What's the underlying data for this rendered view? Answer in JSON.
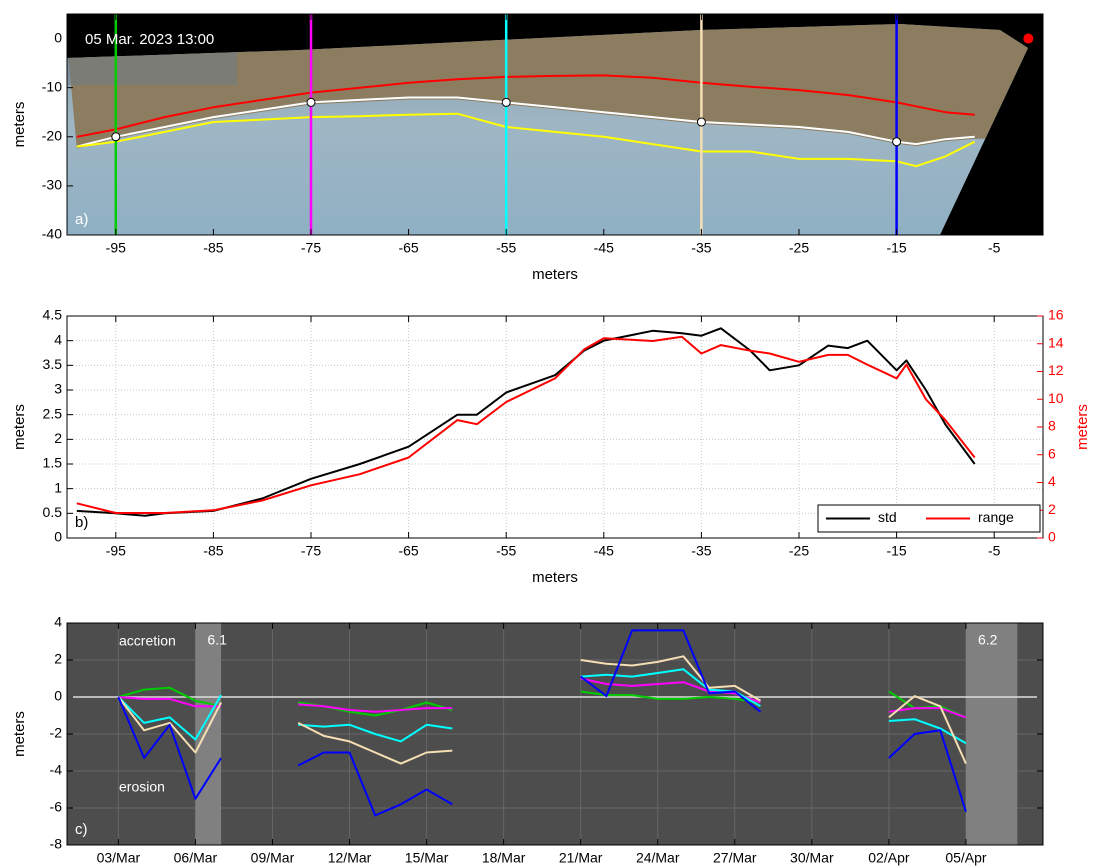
{
  "chart_data": [
    {
      "type": "line",
      "timestamp": "05 Mar. 2023 13:00",
      "panel_label": "a)",
      "xlabel": "meters",
      "ylabel": "meters",
      "xlim": [
        -100,
        0
      ],
      "ylim": [
        -40,
        5
      ],
      "xticks": [
        -95,
        -85,
        -75,
        -65,
        -55,
        -45,
        -35,
        -25,
        -15,
        -5
      ],
      "yticks": [
        -40,
        -30,
        -20,
        -10,
        0
      ],
      "x": [
        -99,
        -95,
        -90,
        -85,
        -80,
        -75,
        -70,
        -65,
        -60,
        -55,
        -50,
        -45,
        -40,
        -35,
        -30,
        -25,
        -20,
        -15,
        -13,
        -10,
        -7
      ],
      "series": [
        {
          "color": "#ff0000",
          "values": [
            -20,
            -18.5,
            -16,
            -14,
            -12.5,
            -11,
            -10,
            -9,
            -8.3,
            -7.8,
            -7.6,
            -7.5,
            -8,
            -9,
            -9.8,
            -10.5,
            -11.5,
            -13,
            -13.8,
            -15,
            -15.5
          ]
        },
        {
          "color": "#ffffff",
          "values": [
            -22,
            -20,
            -18,
            -16,
            -14.5,
            -13,
            -12.5,
            -12,
            -12,
            -13,
            -14,
            -15,
            -16,
            -17,
            -17.5,
            -18,
            -19,
            -21,
            -21.5,
            -20.5,
            -20
          ]
        },
        {
          "color": "#ffff00",
          "values": [
            -22,
            -21,
            -19,
            -17,
            -16.5,
            -16,
            -15.8,
            -15.5,
            -15.3,
            -18,
            -19,
            -20,
            -21.5,
            -23,
            -23,
            -24.5,
            -24.5,
            -25,
            -26,
            -24,
            -21
          ]
        }
      ],
      "transects": [
        {
          "x": -95,
          "y": -20,
          "color": "#00cc00"
        },
        {
          "x": -75,
          "y": -13,
          "color": "#ff00ff"
        },
        {
          "x": -55,
          "y": -13,
          "color": "#00ffff"
        },
        {
          "x": -35,
          "y": -17,
          "color": "#f5deb3"
        },
        {
          "x": -15,
          "y": -21,
          "color": "#0000ff"
        }
      ],
      "marker": {
        "x": -1.5,
        "y": 0,
        "color": "#ff0000"
      }
    },
    {
      "type": "line",
      "panel_label": "b)",
      "xlabel": "meters",
      "ylabel": "meters",
      "y2label": "meters",
      "xlim": [
        -100,
        0
      ],
      "ylim": [
        0,
        4.5
      ],
      "y2lim": [
        0,
        16
      ],
      "xticks": [
        -95,
        -85,
        -75,
        -65,
        -55,
        -45,
        -35,
        -25,
        -15,
        -5
      ],
      "yticks": [
        0,
        0.5,
        1,
        1.5,
        2,
        2.5,
        3,
        3.5,
        4,
        4.5
      ],
      "y2ticks": [
        0,
        2,
        4,
        6,
        8,
        10,
        12,
        14,
        16
      ],
      "grid": true,
      "legend": "lower right",
      "x": [
        -99,
        -95,
        -92,
        -90,
        -85,
        -80,
        -75,
        -70,
        -65,
        -60,
        -58,
        -55,
        -50,
        -47,
        -45,
        -40,
        -37,
        -35,
        -33,
        -30,
        -28,
        -25,
        -22,
        -20,
        -18,
        -15,
        -14,
        -12,
        -10,
        -7
      ],
      "series": [
        {
          "name": "std",
          "color": "#000000",
          "values": [
            0.55,
            0.5,
            0.45,
            0.5,
            0.55,
            0.8,
            1.2,
            1.5,
            1.85,
            2.5,
            2.5,
            2.95,
            3.3,
            3.8,
            4.0,
            4.2,
            4.15,
            4.1,
            4.25,
            3.8,
            3.4,
            3.5,
            3.9,
            3.85,
            4.0,
            3.4,
            3.6,
            3.0,
            2.3,
            1.5
          ]
        },
        {
          "name": "range",
          "color": "#ff0000",
          "axis": "y2",
          "values": [
            2.5,
            1.8,
            1.8,
            1.8,
            2.0,
            2.7,
            3.8,
            4.6,
            5.8,
            8.5,
            8.2,
            9.8,
            11.5,
            13.6,
            14.4,
            14.2,
            14.5,
            13.3,
            13.9,
            13.5,
            13.3,
            12.7,
            13.2,
            13.2,
            12.5,
            11.5,
            12.5,
            10,
            8.5,
            5.8
          ]
        }
      ]
    },
    {
      "type": "line",
      "panel_label": "c)",
      "upper_note": "accretion",
      "lower_note": "erosion",
      "ylabel": "meters",
      "plot_background": "#4d4d4d",
      "grid": true,
      "xlim": [
        "01/Mar",
        "08/Apr"
      ],
      "ylim": [
        -8,
        4
      ],
      "xticks": [
        "03/Mar",
        "06/Mar",
        "09/Mar",
        "12/Mar",
        "15/Mar",
        "18/Mar",
        "21/Mar",
        "24/Mar",
        "27/Mar",
        "30/Mar",
        "02/Apr",
        "05/Apr"
      ],
      "yticks": [
        -8,
        -6,
        -4,
        -2,
        0,
        2,
        4
      ],
      "events": [
        {
          "label": "6.1",
          "start": "06/Mar",
          "end": "07/Mar"
        },
        {
          "label": "6.2",
          "start": "05/Apr",
          "end": "07/Apr"
        }
      ],
      "x": [
        "03/Mar",
        "04/Mar",
        "05/Mar",
        "06/Mar",
        "07/Mar",
        "08/Mar",
        "09/Mar",
        "10/Mar",
        "11/Mar",
        "12/Mar",
        "13/Mar",
        "14/Mar",
        "15/Mar",
        "16/Mar",
        "17/Mar",
        "18/Mar",
        "19/Mar",
        "20/Mar",
        "21/Mar",
        "22/Mar",
        "23/Mar",
        "24/Mar",
        "25/Mar",
        "26/Mar",
        "27/Mar",
        "28/Mar",
        "29/Mar",
        "30/Mar",
        "31/Mar",
        "01/Apr",
        "02/Apr",
        "03/Apr",
        "04/Apr",
        "05/Apr"
      ],
      "series": [
        {
          "color": "#00cc00",
          "values": [
            0,
            0.4,
            0.5,
            -0.2,
            -0.5,
            null,
            null,
            -0.3,
            -0.5,
            -0.8,
            -1.0,
            -0.7,
            -0.3,
            -0.7,
            null,
            null,
            null,
            null,
            0.3,
            0.1,
            0.1,
            -0.1,
            -0.1,
            0.0,
            -0.1,
            -0.3,
            null,
            null,
            null,
            null,
            0.3,
            -0.6,
            -0.5,
            -1.1
          ]
        },
        {
          "color": "#ff00ff",
          "values": [
            0,
            -0.1,
            -0.1,
            -0.5,
            -0.5,
            null,
            null,
            -0.4,
            -0.5,
            -0.7,
            -0.8,
            -0.7,
            -0.6,
            -0.6,
            null,
            null,
            null,
            null,
            1.0,
            0.7,
            0.6,
            0.7,
            0.8,
            0.3,
            0.2,
            -0.3,
            null,
            null,
            null,
            null,
            -0.8,
            -0.6,
            -0.6,
            -1.1
          ]
        },
        {
          "color": "#00ffff",
          "values": [
            0,
            -1.4,
            -1.1,
            -2.3,
            0.1,
            null,
            null,
            -1.5,
            -1.6,
            -1.5,
            -2.0,
            -2.4,
            -1.5,
            -1.7,
            null,
            null,
            null,
            null,
            1.1,
            1.2,
            1.1,
            1.3,
            1.5,
            0.4,
            0.3,
            -0.5,
            null,
            null,
            null,
            null,
            -1.3,
            -1.2,
            -1.7,
            -2.5
          ]
        },
        {
          "color": "#f5deb3",
          "values": [
            0,
            -1.8,
            -1.4,
            -3.0,
            -0.3,
            null,
            null,
            -1.4,
            -2.1,
            -2.4,
            -3.0,
            -3.6,
            -3.0,
            -2.9,
            null,
            null,
            null,
            null,
            2.0,
            1.8,
            1.7,
            1.9,
            2.2,
            0.5,
            0.6,
            -0.2,
            null,
            null,
            null,
            null,
            -1.1,
            0.05,
            -0.5,
            -3.6
          ]
        },
        {
          "color": "#0000ff",
          "values": [
            0,
            -3.3,
            -1.5,
            -5.5,
            -3.3,
            null,
            null,
            -3.7,
            -3.0,
            -3.0,
            -6.4,
            -5.8,
            -5.0,
            -5.8,
            null,
            null,
            null,
            null,
            1.1,
            0.05,
            3.6,
            3.6,
            3.6,
            0.2,
            0.3,
            -0.8,
            null,
            null,
            null,
            null,
            -3.3,
            -2.0,
            -1.8,
            -6.2
          ]
        }
      ]
    }
  ]
}
